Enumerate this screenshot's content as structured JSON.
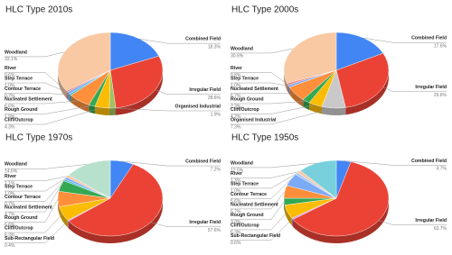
{
  "chart_data": [
    {
      "type": "pie",
      "title": "HLC Type 2010s",
      "categories": [
        "Combined Field",
        "Irregular Field",
        "Organised Industrial",
        "Cliff/Outcrop",
        "Rough Ground",
        "Nucleated Settlement",
        "Contour Terrace",
        "Step Terrace",
        "River",
        "Woodland"
      ],
      "values": [
        18.3,
        28.6,
        1.9,
        4.3,
        1.9,
        6.6,
        0.7,
        1.0,
        0.6,
        33.1
      ],
      "value_labels": [
        "18.3%",
        "28.6%",
        "1.9%",
        "4.3%",
        "1.9%",
        "6.6%",
        "0.7%",
        "1.0%",
        "0.6%",
        "33.1%"
      ],
      "colors": [
        "#4285f4",
        "#ea4335",
        "#a0c15a",
        "#fbbc04",
        "#34a853",
        "#ff8f3a",
        "#46bdc6",
        "#7baaf7",
        "#f07b72",
        "#f8c9a3"
      ]
    },
    {
      "type": "pie",
      "title": "HLC Type 2000s",
      "categories": [
        "Combined Field",
        "Irregular Field",
        "Organised Industrial",
        "Cliff/Outcrop",
        "Rough Ground",
        "Nucleated Settlement",
        "Step Terrace",
        "River",
        "Woodland"
      ],
      "values": [
        17.6,
        29.6,
        7.3,
        4.2,
        2.3,
        6.7,
        1.0,
        0.8,
        30.6
      ],
      "value_labels": [
        "17.6%",
        "29.6%",
        "7.3%",
        "4.2%",
        "2.3%",
        "6.7%",
        "1.0%",
        "0.8%",
        "30.6%"
      ],
      "colors": [
        "#4285f4",
        "#ea4335",
        "#c9c9c9",
        "#fbbc04",
        "#34a853",
        "#ff8f3a",
        "#7baaf7",
        "#f07b72",
        "#f8c9a3"
      ]
    },
    {
      "type": "pie",
      "title": "HLC Type 1970s",
      "categories": [
        "Combined Field",
        "Irregular Field",
        "Sub-Rectangular Field",
        "Cliff/Outcrop",
        "Rough Ground",
        "Nucleated Settlement",
        "Contour Terrace",
        "Step Terrace",
        "River",
        "Woodland"
      ],
      "values": [
        7.2,
        57.6,
        0.4,
        6.3,
        6.6,
        4.7,
        0.7,
        1.0,
        1.1,
        14.6
      ],
      "value_labels": [
        "7.2%",
        "57.6%",
        "0.4%",
        "6.3%",
        "6.6%",
        "4.7%",
        "0.7%",
        "1.0%",
        "1.1%",
        "14.6%"
      ],
      "colors": [
        "#4285f4",
        "#ea4335",
        "#c58af9",
        "#fbbc04",
        "#ff8f3a",
        "#34a853",
        "#46bdc6",
        "#7baaf7",
        "#f8c9a3",
        "#b7e1cd"
      ]
    },
    {
      "type": "pie",
      "title": "HLC Type 1950s",
      "categories": [
        "Combined Field",
        "Irregular Field",
        "Sub-Rectangular Field",
        "Cliff/Outcrop",
        "Rough Ground",
        "Nucleated Settlement",
        "Contour Terrace",
        "Step Terrace",
        "River",
        "Woodland"
      ],
      "values": [
        4.7,
        63.7,
        0.6,
        6.3,
        3.0,
        5.7,
        5.6,
        1.0,
        1.3,
        12.5
      ],
      "value_labels": [
        "4.7%",
        "63.7%",
        "0.6%",
        "6.3%",
        "3.0%",
        "5.7%",
        "5.6%",
        "1.0%",
        "1.3%",
        "12.5%"
      ],
      "colors": [
        "#4285f4",
        "#ea4335",
        "#c58af9",
        "#fbbc04",
        "#34a853",
        "#ff8f3a",
        "#7baaf7",
        "#a8c7fa",
        "#f8c9a3",
        "#78d0dc"
      ]
    }
  ]
}
